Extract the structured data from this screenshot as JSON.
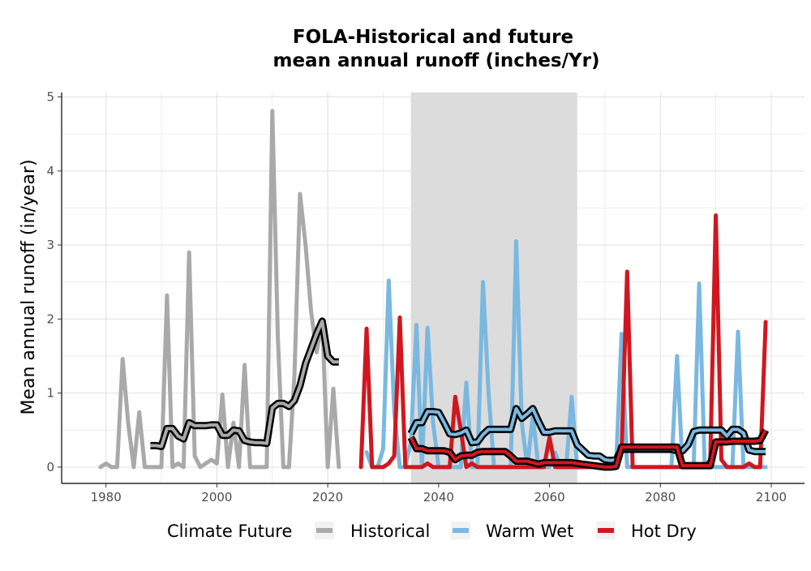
{
  "colors": {
    "historical": "#A9A9A9",
    "warm_wet": "#7AB8E0",
    "hot_dry": "#D0171F",
    "rolling_outline": "#000000",
    "shade": "#DCDCDC",
    "grid": "#E3E3E3"
  },
  "chart_data": {
    "type": "line",
    "title_line1": "FOLA-Historical and future",
    "title_line2": "mean annual runoff (inches/Yr)",
    "xlabel": "",
    "ylabel": "Mean annual runoff (in/year)",
    "xlim": [
      1972,
      2106
    ],
    "ylim": [
      -0.22,
      5.06
    ],
    "xticks": [
      1980,
      2000,
      2020,
      2040,
      2060,
      2080,
      2100
    ],
    "yticks": [
      0,
      1,
      2,
      3,
      4,
      5
    ],
    "grid": true,
    "shaded_period": [
      2035,
      2065
    ],
    "legend_title": "Climate Future",
    "legend_position": "bottom",
    "series": [
      {
        "name": "Historical",
        "color_key": "historical",
        "x": [
          1979,
          1980,
          1981,
          1982,
          1983,
          1984,
          1985,
          1986,
          1987,
          1988,
          1989,
          1990,
          1991,
          1992,
          1993,
          1994,
          1995,
          1996,
          1997,
          1998,
          1999,
          2000,
          2001,
          2002,
          2003,
          2004,
          2005,
          2006,
          2007,
          2008,
          2009,
          2010,
          2011,
          2012,
          2013,
          2014,
          2015,
          2016,
          2017,
          2018,
          2019,
          2020,
          2021,
          2022
        ],
        "values": [
          0,
          0.05,
          0,
          0,
          1.46,
          0.6,
          0,
          0.74,
          0,
          0,
          0,
          0,
          2.32,
          0,
          0.05,
          0,
          2.9,
          0.15,
          0,
          0.05,
          0.1,
          0.05,
          0.98,
          0,
          0.6,
          0,
          1.38,
          0,
          0,
          0,
          0,
          4.81,
          1.75,
          0,
          0,
          1.25,
          3.69,
          3.0,
          2.1,
          1.55,
          2.0,
          0,
          1.06,
          0
        ]
      },
      {
        "name": "Warm Wet",
        "color_key": "warm_wet",
        "x": [
          2027,
          2028,
          2029,
          2030,
          2031,
          2032,
          2033,
          2034,
          2035,
          2036,
          2037,
          2038,
          2039,
          2040,
          2041,
          2042,
          2043,
          2044,
          2045,
          2046,
          2047,
          2048,
          2049,
          2050,
          2051,
          2052,
          2053,
          2054,
          2055,
          2056,
          2057,
          2058,
          2059,
          2060,
          2061,
          2062,
          2063,
          2064,
          2065,
          2066,
          2067,
          2068,
          2069,
          2070,
          2071,
          2072,
          2073,
          2074,
          2075,
          2076,
          2077,
          2078,
          2079,
          2080,
          2081,
          2082,
          2083,
          2084,
          2085,
          2086,
          2087,
          2088,
          2089,
          2090,
          2091,
          2092,
          2093,
          2094,
          2095,
          2096,
          2097,
          2098,
          2099
        ],
        "values": [
          0.2,
          0,
          0,
          0.25,
          2.52,
          0.75,
          0,
          0,
          0.35,
          1.92,
          0,
          1.88,
          0.6,
          0,
          0,
          0,
          0,
          0,
          1.14,
          0,
          0,
          2.5,
          1.0,
          0,
          0,
          0,
          0,
          3.05,
          0.6,
          0,
          0.7,
          0,
          0,
          0,
          0.2,
          0,
          0,
          0.95,
          0,
          0,
          0,
          0,
          0,
          0,
          0,
          0,
          1.8,
          0,
          0,
          0,
          0,
          0,
          0,
          0,
          0,
          0,
          1.5,
          0,
          0,
          0,
          2.48,
          0,
          0,
          0,
          0,
          0,
          0,
          1.83,
          0,
          0,
          0,
          0,
          0
        ]
      },
      {
        "name": "Hot Dry",
        "color_key": "hot_dry",
        "x": [
          2026,
          2027,
          2028,
          2029,
          2030,
          2031,
          2032,
          2033,
          2034,
          2035,
          2036,
          2037,
          2038,
          2039,
          2040,
          2041,
          2042,
          2043,
          2044,
          2045,
          2046,
          2047,
          2048,
          2049,
          2050,
          2051,
          2052,
          2053,
          2054,
          2055,
          2056,
          2057,
          2058,
          2059,
          2060,
          2061,
          2062,
          2063,
          2064,
          2065,
          2066,
          2067,
          2068,
          2069,
          2070,
          2071,
          2072,
          2073,
          2074,
          2075,
          2076,
          2077,
          2078,
          2079,
          2080,
          2081,
          2082,
          2083,
          2084,
          2085,
          2086,
          2087,
          2088,
          2089,
          2090,
          2091,
          2092,
          2093,
          2094,
          2095,
          2096,
          2097,
          2098,
          2099
        ],
        "values": [
          0,
          1.87,
          0,
          0,
          0,
          0.05,
          0.15,
          2.02,
          0,
          0,
          0,
          0,
          0.05,
          0,
          0,
          0,
          0,
          0.95,
          0.5,
          0,
          0.05,
          0,
          0,
          0,
          0,
          0,
          0,
          0,
          0,
          0,
          0,
          0,
          0,
          0,
          0.4,
          0,
          0,
          0,
          0,
          0,
          0,
          0,
          0,
          0,
          0,
          0,
          0,
          0.2,
          2.64,
          0,
          0,
          0,
          0,
          0,
          0,
          0,
          0,
          0,
          0,
          0,
          0,
          0,
          0,
          0.1,
          3.4,
          0.1,
          0,
          0,
          0,
          0,
          0.05,
          0,
          0,
          1.96
        ]
      }
    ],
    "rolling_means": [
      {
        "series": "Historical",
        "x": [
          1988,
          1989,
          1990,
          1991,
          1992,
          1993,
          1994,
          1995,
          1996,
          1997,
          1998,
          1999,
          2000,
          2001,
          2002,
          2003,
          2004,
          2005,
          2006,
          2007,
          2008,
          2009,
          2010,
          2011,
          2012,
          2013,
          2014,
          2015,
          2016,
          2017,
          2018,
          2019,
          2020,
          2021,
          2022
        ],
        "values": [
          0.29,
          0.29,
          0.28,
          0.52,
          0.52,
          0.42,
          0.38,
          0.6,
          0.56,
          0.56,
          0.56,
          0.57,
          0.57,
          0.43,
          0.43,
          0.5,
          0.49,
          0.36,
          0.34,
          0.33,
          0.33,
          0.32,
          0.8,
          0.86,
          0.86,
          0.82,
          0.9,
          1.1,
          1.4,
          1.6,
          1.8,
          1.97,
          1.5,
          1.42,
          1.42
        ]
      },
      {
        "series": "Warm Wet",
        "x": [
          2035,
          2036,
          2037,
          2038,
          2039,
          2040,
          2041,
          2042,
          2043,
          2044,
          2045,
          2046,
          2047,
          2048,
          2049,
          2050,
          2051,
          2052,
          2053,
          2054,
          2055,
          2056,
          2057,
          2058,
          2059,
          2060,
          2061,
          2062,
          2063,
          2064,
          2065,
          2066,
          2067,
          2068,
          2069,
          2070,
          2071,
          2072,
          2073,
          2074,
          2075,
          2076,
          2077,
          2078,
          2079,
          2080,
          2081,
          2082,
          2083,
          2084,
          2085,
          2086,
          2087,
          2088,
          2089,
          2090,
          2091,
          2092,
          2093,
          2094,
          2095,
          2096,
          2097,
          2098,
          2099
        ],
        "values": [
          0.45,
          0.6,
          0.6,
          0.75,
          0.75,
          0.74,
          0.6,
          0.45,
          0.44,
          0.46,
          0.5,
          0.33,
          0.34,
          0.44,
          0.51,
          0.51,
          0.51,
          0.51,
          0.51,
          0.79,
          0.66,
          0.72,
          0.79,
          0.62,
          0.47,
          0.47,
          0.49,
          0.49,
          0.49,
          0.49,
          0.3,
          0.23,
          0.16,
          0.15,
          0.15,
          0.1,
          0.09,
          0.1,
          0.24,
          0.24,
          0.24,
          0.24,
          0.24,
          0.24,
          0.24,
          0.24,
          0.24,
          0.24,
          0.22,
          0.22,
          0.3,
          0.48,
          0.5,
          0.5,
          0.5,
          0.5,
          0.5,
          0.42,
          0.51,
          0.51,
          0.46,
          0.23,
          0.21,
          0.21,
          0.21
        ]
      },
      {
        "series": "Hot Dry",
        "x": [
          2035,
          2036,
          2037,
          2038,
          2039,
          2040,
          2041,
          2042,
          2043,
          2044,
          2045,
          2046,
          2047,
          2048,
          2049,
          2050,
          2051,
          2052,
          2053,
          2054,
          2055,
          2056,
          2057,
          2058,
          2059,
          2060,
          2061,
          2062,
          2063,
          2064,
          2065,
          2066,
          2067,
          2068,
          2069,
          2070,
          2071,
          2072,
          2073,
          2074,
          2075,
          2076,
          2077,
          2078,
          2079,
          2080,
          2081,
          2082,
          2083,
          2084,
          2085,
          2086,
          2087,
          2088,
          2089,
          2090,
          2091,
          2092,
          2093,
          2094,
          2095,
          2096,
          2097,
          2098,
          2099
        ],
        "values": [
          0.4,
          0.25,
          0.25,
          0.22,
          0.22,
          0.22,
          0.22,
          0.2,
          0.1,
          0.15,
          0.16,
          0.16,
          0.2,
          0.21,
          0.21,
          0.21,
          0.21,
          0.21,
          0.15,
          0.08,
          0.08,
          0.08,
          0.06,
          0.04,
          0.06,
          0.06,
          0.06,
          0.06,
          0.06,
          0.06,
          0.05,
          0.04,
          0.03,
          0.02,
          0.01,
          0,
          0,
          0.01,
          0.27,
          0.27,
          0.27,
          0.27,
          0.27,
          0.27,
          0.27,
          0.27,
          0.27,
          0.27,
          0.27,
          0.02,
          0.02,
          0.02,
          0.02,
          0.02,
          0.02,
          0.34,
          0.34,
          0.34,
          0.35,
          0.35,
          0.35,
          0.35,
          0.35,
          0.36,
          0.5
        ]
      }
    ]
  }
}
